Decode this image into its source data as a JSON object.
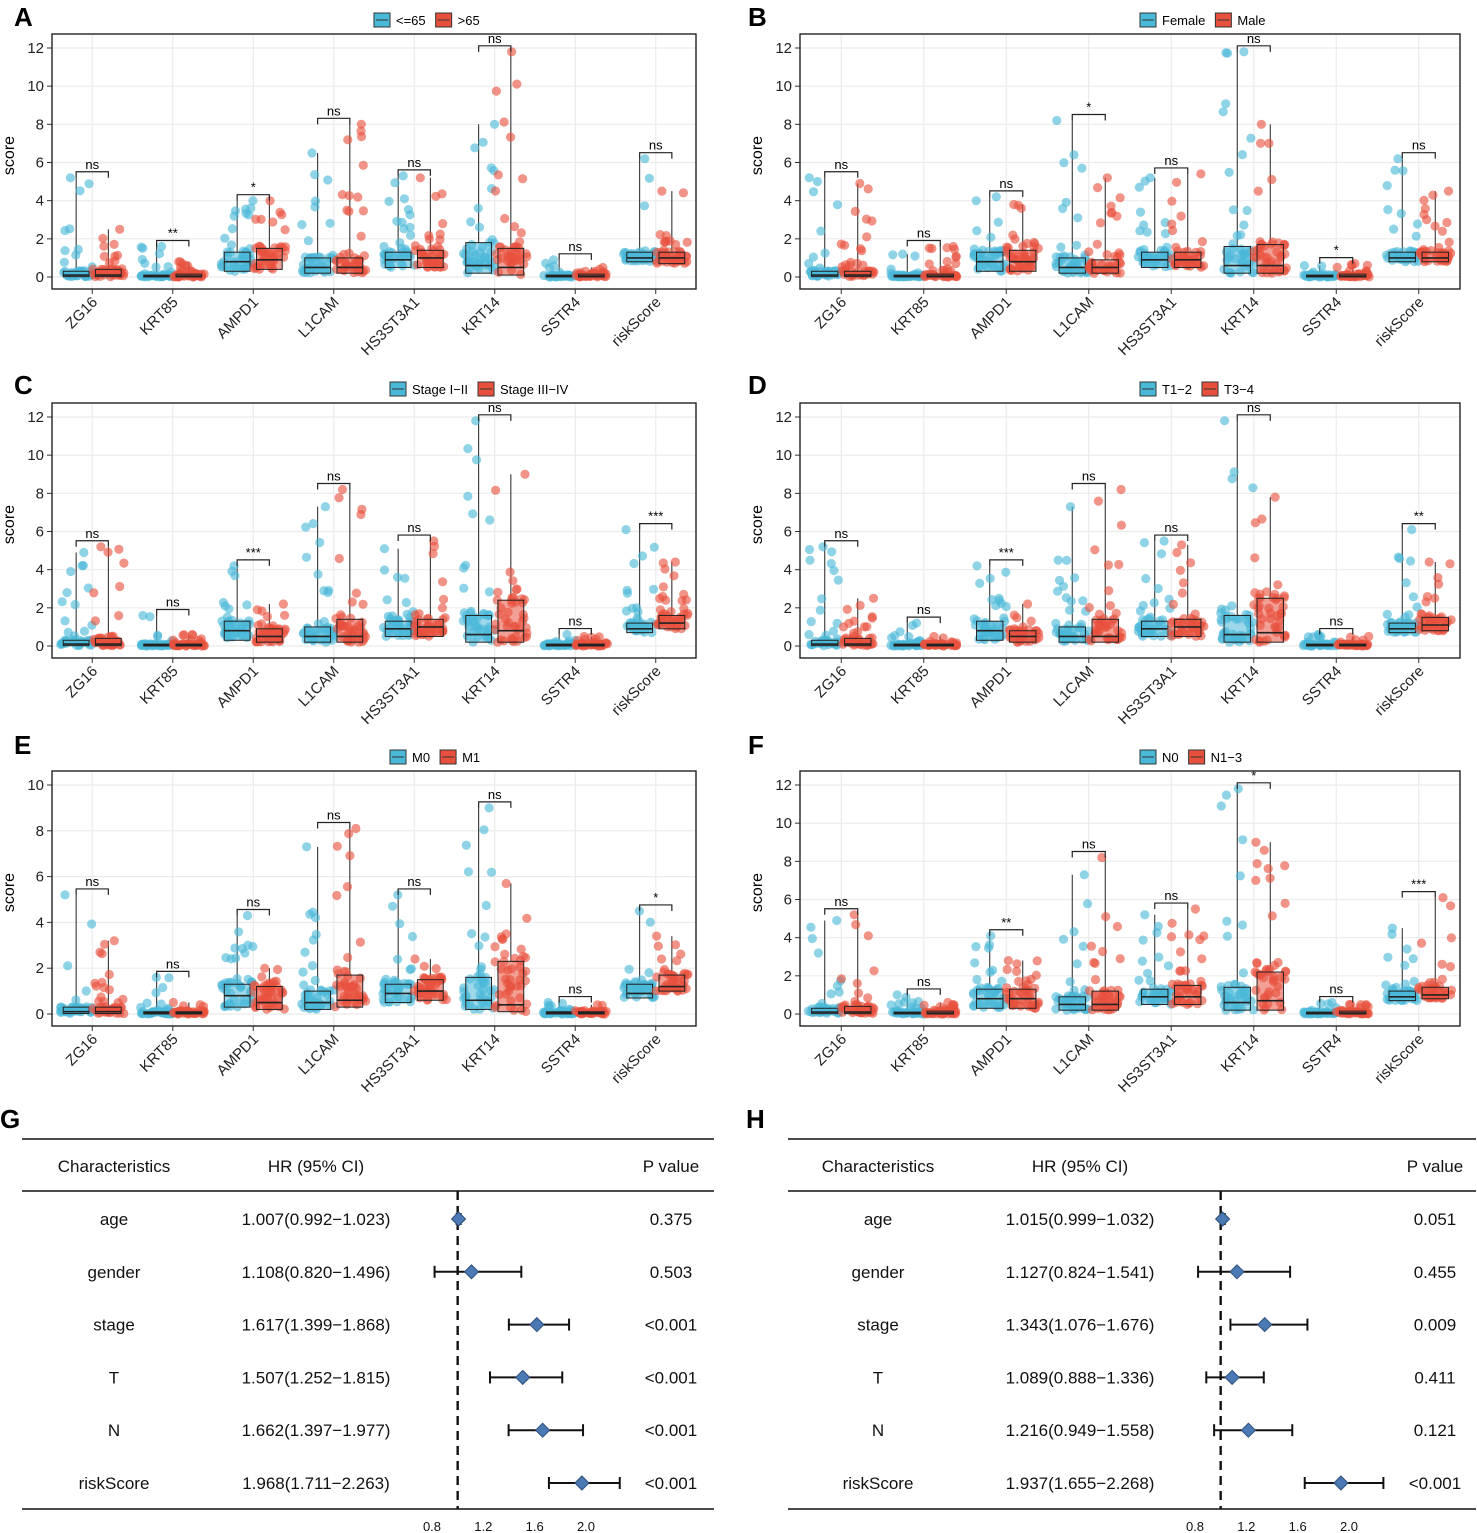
{
  "chart_data": {
    "box_panels": [
      {
        "letter": "A",
        "legend": [
          "<=65",
          ">65"
        ],
        "ymax": 12,
        "yticks": [
          0,
          2,
          4,
          6,
          8,
          10,
          12
        ],
        "ylabel": "score",
        "categories": [
          "ZG16",
          "KRT85",
          "AMPD1",
          "L1CAM",
          "HS3ST3A1",
          "KRT14",
          "SSTR4",
          "riskScore"
        ],
        "significance": [
          "ns",
          "**",
          "*",
          "ns",
          "ns",
          "ns",
          "ns",
          "ns"
        ],
        "series": [
          {
            "name": "<=65",
            "color": "#4ab8d8",
            "q1": [
              0.02,
              0.0,
              0.3,
              0.2,
              0.5,
              0.2,
              0.0,
              0.8
            ],
            "median": [
              0.1,
              0.05,
              0.8,
              0.5,
              0.9,
              0.6,
              0.05,
              1.0
            ],
            "q3": [
              0.3,
              0.1,
              1.3,
              1.0,
              1.3,
              1.8,
              0.1,
              1.3
            ],
            "max": [
              5.2,
              1.6,
              4.0,
              6.5,
              5.3,
              8.0,
              0.9,
              6.2
            ]
          },
          {
            "name": ">65",
            "color": "#e8503e",
            "q1": [
              0.02,
              0.0,
              0.4,
              0.2,
              0.5,
              0.1,
              0.0,
              0.7
            ],
            "median": [
              0.1,
              0.05,
              0.9,
              0.5,
              1.0,
              0.5,
              0.05,
              1.0
            ],
            "q3": [
              0.4,
              0.15,
              1.5,
              1.0,
              1.4,
              1.5,
              0.15,
              1.3
            ],
            "max": [
              2.5,
              0.8,
              4.0,
              8.0,
              5.2,
              11.8,
              0.5,
              4.5
            ]
          }
        ]
      },
      {
        "letter": "B",
        "legend": [
          "Female",
          "Male"
        ],
        "ymax": 12,
        "yticks": [
          0,
          2,
          4,
          6,
          8,
          10,
          12
        ],
        "ylabel": "score",
        "categories": [
          "ZG16",
          "KRT85",
          "AMPD1",
          "L1CAM",
          "HS3ST3A1",
          "KRT14",
          "SSTR4",
          "riskScore"
        ],
        "significance": [
          "ns",
          "ns",
          "ns",
          "*",
          "ns",
          "ns",
          "*",
          "ns"
        ],
        "series": [
          {
            "name": "Female",
            "color": "#4ab8d8",
            "q1": [
              0.02,
              0.0,
              0.3,
              0.2,
              0.5,
              0.2,
              0.0,
              0.8
            ],
            "median": [
              0.1,
              0.05,
              0.8,
              0.5,
              0.9,
              0.6,
              0.05,
              1.0
            ],
            "q3": [
              0.3,
              0.1,
              1.3,
              1.0,
              1.3,
              1.6,
              0.1,
              1.3
            ],
            "max": [
              5.2,
              1.2,
              4.2,
              8.2,
              5.2,
              11.8,
              0.6,
              6.2
            ]
          },
          {
            "name": "Male",
            "color": "#e8503e",
            "q1": [
              0.02,
              0.0,
              0.3,
              0.2,
              0.5,
              0.2,
              0.0,
              0.8
            ],
            "median": [
              0.1,
              0.05,
              0.8,
              0.5,
              0.9,
              0.6,
              0.05,
              1.0
            ],
            "q3": [
              0.3,
              0.15,
              1.4,
              0.9,
              1.3,
              1.7,
              0.15,
              1.3
            ],
            "max": [
              4.9,
              1.6,
              3.8,
              5.2,
              5.4,
              8.0,
              0.7,
              4.5
            ]
          }
        ]
      },
      {
        "letter": "C",
        "legend": [
          "Stage I−II",
          "Stage III−IV"
        ],
        "ymax": 12,
        "yticks": [
          0,
          2,
          4,
          6,
          8,
          10,
          12
        ],
        "ylabel": "score",
        "categories": [
          "ZG16",
          "KRT85",
          "AMPD1",
          "L1CAM",
          "HS3ST3A1",
          "KRT14",
          "SSTR4",
          "riskScore"
        ],
        "significance": [
          "ns",
          "ns",
          "***",
          "ns",
          "ns",
          "ns",
          "ns",
          "***"
        ],
        "series": [
          {
            "name": "Stage I−II",
            "color": "#4ab8d8",
            "q1": [
              0.02,
              0.0,
              0.3,
              0.2,
              0.5,
              0.2,
              0.0,
              0.7
            ],
            "median": [
              0.1,
              0.05,
              0.8,
              0.5,
              0.9,
              0.6,
              0.05,
              0.9
            ],
            "q3": [
              0.3,
              0.1,
              1.3,
              1.0,
              1.3,
              1.6,
              0.1,
              1.2
            ],
            "max": [
              4.9,
              1.6,
              4.2,
              7.3,
              5.1,
              11.8,
              0.6,
              6.1
            ]
          },
          {
            "name": "Stage III−IV",
            "color": "#e8503e",
            "q1": [
              0.02,
              0.0,
              0.2,
              0.2,
              0.5,
              0.2,
              0.0,
              0.9
            ],
            "median": [
              0.1,
              0.05,
              0.5,
              0.5,
              1.0,
              0.8,
              0.05,
              1.2
            ],
            "q3": [
              0.4,
              0.1,
              0.9,
              1.4,
              1.4,
              2.4,
              0.1,
              1.6
            ],
            "max": [
              5.2,
              0.6,
              2.2,
              8.2,
              5.5,
              9.0,
              0.5,
              4.4
            ]
          }
        ]
      },
      {
        "letter": "D",
        "legend": [
          "T1−2",
          "T3−4"
        ],
        "ymax": 12,
        "yticks": [
          0,
          2,
          4,
          6,
          8,
          10,
          12
        ],
        "ylabel": "score",
        "categories": [
          "ZG16",
          "KRT85",
          "AMPD1",
          "L1CAM",
          "HS3ST3A1",
          "KRT14",
          "SSTR4",
          "riskScore"
        ],
        "significance": [
          "ns",
          "ns",
          "***",
          "ns",
          "ns",
          "ns",
          "ns",
          "**"
        ],
        "series": [
          {
            "name": "T1−2",
            "color": "#4ab8d8",
            "q1": [
              0.02,
              0.0,
              0.3,
              0.2,
              0.5,
              0.2,
              0.0,
              0.7
            ],
            "median": [
              0.1,
              0.05,
              0.8,
              0.5,
              0.9,
              0.6,
              0.05,
              0.9
            ],
            "q3": [
              0.3,
              0.1,
              1.3,
              1.0,
              1.3,
              1.6,
              0.1,
              1.2
            ],
            "max": [
              5.2,
              1.2,
              4.2,
              7.3,
              5.5,
              11.8,
              0.6,
              6.1
            ]
          },
          {
            "name": "T3−4",
            "color": "#e8503e",
            "q1": [
              0.02,
              0.0,
              0.2,
              0.2,
              0.5,
              0.2,
              0.0,
              0.8
            ],
            "median": [
              0.1,
              0.05,
              0.5,
              0.5,
              1.0,
              0.7,
              0.05,
              1.1
            ],
            "q3": [
              0.4,
              0.1,
              0.8,
              1.4,
              1.4,
              2.5,
              0.1,
              1.5
            ],
            "max": [
              2.5,
              0.5,
              2.2,
              8.2,
              5.3,
              7.8,
              0.5,
              4.4
            ]
          }
        ]
      },
      {
        "letter": "E",
        "legend": [
          "M0",
          "M1"
        ],
        "ymax": 10,
        "yticks": [
          0,
          2,
          4,
          6,
          8,
          10
        ],
        "ylabel": "score",
        "categories": [
          "ZG16",
          "KRT85",
          "AMPD1",
          "L1CAM",
          "HS3ST3A1",
          "KRT14",
          "SSTR4",
          "riskScore"
        ],
        "significance": [
          "ns",
          "ns",
          "ns",
          "ns",
          "ns",
          "ns",
          "ns",
          "*"
        ],
        "series": [
          {
            "name": "M0",
            "color": "#4ab8d8",
            "q1": [
              0.02,
              0.0,
              0.3,
              0.2,
              0.5,
              0.2,
              0.0,
              0.7
            ],
            "median": [
              0.1,
              0.05,
              0.8,
              0.5,
              0.9,
              0.6,
              0.05,
              0.9
            ],
            "q3": [
              0.3,
              0.1,
              1.3,
              1.0,
              1.3,
              1.6,
              0.1,
              1.3
            ],
            "max": [
              5.2,
              1.6,
              4.3,
              7.3,
              5.2,
              9.0,
              0.5,
              4.5
            ]
          },
          {
            "name": "M1",
            "color": "#e8503e",
            "q1": [
              0.02,
              0.0,
              0.2,
              0.3,
              0.6,
              0.1,
              0.0,
              1.0
            ],
            "median": [
              0.1,
              0.05,
              0.5,
              0.6,
              1.0,
              0.4,
              0.05,
              1.2
            ],
            "q3": [
              0.3,
              0.1,
              1.2,
              1.7,
              1.5,
              2.3,
              0.1,
              1.7
            ],
            "max": [
              3.2,
              0.5,
              2.0,
              8.1,
              2.4,
              5.7,
              0.4,
              3.4
            ]
          }
        ]
      },
      {
        "letter": "F",
        "legend": [
          "N0",
          "N1−3"
        ],
        "ymax": 12,
        "yticks": [
          0,
          2,
          4,
          6,
          8,
          10,
          12
        ],
        "ylabel": "score",
        "categories": [
          "ZG16",
          "KRT85",
          "AMPD1",
          "L1CAM",
          "HS3ST3A1",
          "KRT14",
          "SSTR4",
          "riskScore"
        ],
        "significance": [
          "ns",
          "ns",
          "**",
          "ns",
          "ns",
          "*",
          "ns",
          "***"
        ],
        "series": [
          {
            "name": "N0",
            "color": "#4ab8d8",
            "q1": [
              0.02,
              0.0,
              0.3,
              0.2,
              0.5,
              0.2,
              0.0,
              0.7
            ],
            "median": [
              0.1,
              0.05,
              0.8,
              0.5,
              0.9,
              0.6,
              0.05,
              0.9
            ],
            "q3": [
              0.3,
              0.1,
              1.3,
              0.9,
              1.3,
              1.4,
              0.1,
              1.2
            ],
            "max": [
              4.9,
              1.0,
              4.1,
              7.3,
              5.2,
              11.8,
              0.6,
              4.5
            ]
          },
          {
            "name": "N1−3",
            "color": "#e8503e",
            "q1": [
              0.02,
              0.0,
              0.3,
              0.2,
              0.5,
              0.2,
              0.0,
              0.8
            ],
            "median": [
              0.1,
              0.05,
              0.8,
              0.5,
              0.9,
              0.7,
              0.05,
              1.0
            ],
            "q3": [
              0.4,
              0.15,
              1.3,
              1.2,
              1.5,
              2.2,
              0.15,
              1.4
            ],
            "max": [
              5.2,
              0.6,
              2.8,
              8.2,
              5.5,
              9.0,
              0.5,
              6.1
            ]
          }
        ]
      }
    ],
    "forest_panels": [
      {
        "letter": "G",
        "headers": {
          "char": "Characteristics",
          "hr": "HR (95% CI)",
          "p": "P value"
        },
        "axis_ticks": [
          "0.8",
          "1.2",
          "1.6",
          "2.0"
        ],
        "xlim": [
          0.8,
          2.0
        ],
        "ref": 1.0,
        "rows": [
          {
            "name": "age",
            "hr_text": "1.007(0.992−1.023)",
            "p": "0.375",
            "hr": 1.007,
            "lo": 0.992,
            "hi": 1.023
          },
          {
            "name": "gender",
            "hr_text": "1.108(0.820−1.496)",
            "p": "0.503",
            "hr": 1.108,
            "lo": 0.82,
            "hi": 1.496
          },
          {
            "name": "stage",
            "hr_text": "1.617(1.399−1.868)",
            "p": "<0.001",
            "hr": 1.617,
            "lo": 1.399,
            "hi": 1.868
          },
          {
            "name": "T",
            "hr_text": "1.507(1.252−1.815)",
            "p": "<0.001",
            "hr": 1.507,
            "lo": 1.252,
            "hi": 1.815
          },
          {
            "name": "N",
            "hr_text": "1.662(1.397−1.977)",
            "p": "<0.001",
            "hr": 1.662,
            "lo": 1.397,
            "hi": 1.977
          },
          {
            "name": "riskScore",
            "hr_text": "1.968(1.711−2.263)",
            "p": "<0.001",
            "hr": 1.968,
            "lo": 1.711,
            "hi": 2.263
          }
        ]
      },
      {
        "letter": "H",
        "headers": {
          "char": "Characteristics",
          "hr": "HR (95% CI)",
          "p": "P value"
        },
        "axis_ticks": [
          "0.8",
          "1.2",
          "1.6",
          "2.0"
        ],
        "xlim": [
          0.8,
          2.0
        ],
        "ref": 1.0,
        "rows": [
          {
            "name": "age",
            "hr_text": "1.015(0.999−1.032)",
            "p": "0.051",
            "hr": 1.015,
            "lo": 0.999,
            "hi": 1.032
          },
          {
            "name": "gender",
            "hr_text": "1.127(0.824−1.541)",
            "p": "0.455",
            "hr": 1.127,
            "lo": 0.824,
            "hi": 1.541
          },
          {
            "name": "stage",
            "hr_text": "1.343(1.076−1.676)",
            "p": "0.009",
            "hr": 1.343,
            "lo": 1.076,
            "hi": 1.676
          },
          {
            "name": "T",
            "hr_text": "1.089(0.888−1.336)",
            "p": "0.411",
            "hr": 1.089,
            "lo": 0.888,
            "hi": 1.336
          },
          {
            "name": "N",
            "hr_text": "1.216(0.949−1.558)",
            "p": "0.121",
            "hr": 1.216,
            "lo": 0.949,
            "hi": 1.558
          },
          {
            "name": "riskScore",
            "hr_text": "1.937(1.655−2.268)",
            "p": "<0.001",
            "hr": 1.937,
            "lo": 1.655,
            "hi": 2.268
          }
        ]
      }
    ]
  }
}
